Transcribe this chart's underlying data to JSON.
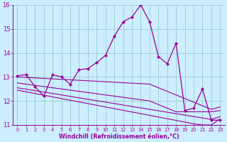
{
  "x": [
    0,
    1,
    2,
    3,
    4,
    5,
    6,
    7,
    8,
    9,
    10,
    11,
    12,
    13,
    14,
    15,
    16,
    17,
    18,
    19,
    20,
    21,
    22,
    23
  ],
  "temp_line": [
    13.05,
    13.1,
    12.6,
    12.2,
    13.1,
    13.0,
    12.7,
    13.3,
    13.35,
    13.6,
    13.9,
    14.7,
    15.3,
    15.5,
    16.0,
    15.3,
    13.85,
    13.55,
    14.4,
    11.6,
    11.7,
    12.5,
    11.2,
    11.2
  ],
  "ref_line1": [
    13.0,
    12.98,
    12.96,
    12.94,
    12.92,
    12.9,
    12.88,
    12.86,
    12.84,
    12.82,
    12.8,
    12.78,
    12.76,
    12.74,
    12.72,
    12.7,
    12.55,
    12.4,
    12.25,
    12.1,
    11.95,
    11.8,
    11.65,
    11.75
  ],
  "ref_line2": [
    12.75,
    12.7,
    12.65,
    12.6,
    12.55,
    12.5,
    12.45,
    12.4,
    12.35,
    12.3,
    12.25,
    12.2,
    12.15,
    12.1,
    12.05,
    12.0,
    11.85,
    11.7,
    11.55,
    11.55,
    11.55,
    11.55,
    11.55,
    11.6
  ],
  "ref_line3": [
    12.55,
    12.49,
    12.43,
    12.37,
    12.31,
    12.25,
    12.19,
    12.13,
    12.07,
    12.01,
    11.95,
    11.89,
    11.83,
    11.77,
    11.71,
    11.65,
    11.59,
    11.53,
    11.47,
    11.41,
    11.35,
    11.29,
    11.23,
    11.35
  ],
  "ref_line4": [
    12.45,
    12.38,
    12.31,
    12.24,
    12.17,
    12.1,
    12.03,
    11.96,
    11.89,
    11.82,
    11.75,
    11.68,
    11.61,
    11.54,
    11.47,
    11.4,
    11.33,
    11.26,
    11.19,
    11.12,
    11.05,
    11.0,
    11.0,
    11.25
  ],
  "line_color": "#990099",
  "bg_color": "#cceeff",
  "grid_color": "#99cccc",
  "xlabel": "Windchill (Refroidissement éolien,°C)",
  "ylim": [
    11,
    16
  ],
  "xlim": [
    -0.5,
    23.5
  ],
  "yticks": [
    11,
    12,
    13,
    14,
    15,
    16
  ],
  "xticks": [
    0,
    1,
    2,
    3,
    4,
    5,
    6,
    7,
    8,
    9,
    10,
    11,
    12,
    13,
    14,
    15,
    16,
    17,
    18,
    19,
    20,
    21,
    22,
    23
  ],
  "xtick_fontsize": 4.8,
  "ytick_fontsize": 6.0,
  "xlabel_fontsize": 5.8
}
